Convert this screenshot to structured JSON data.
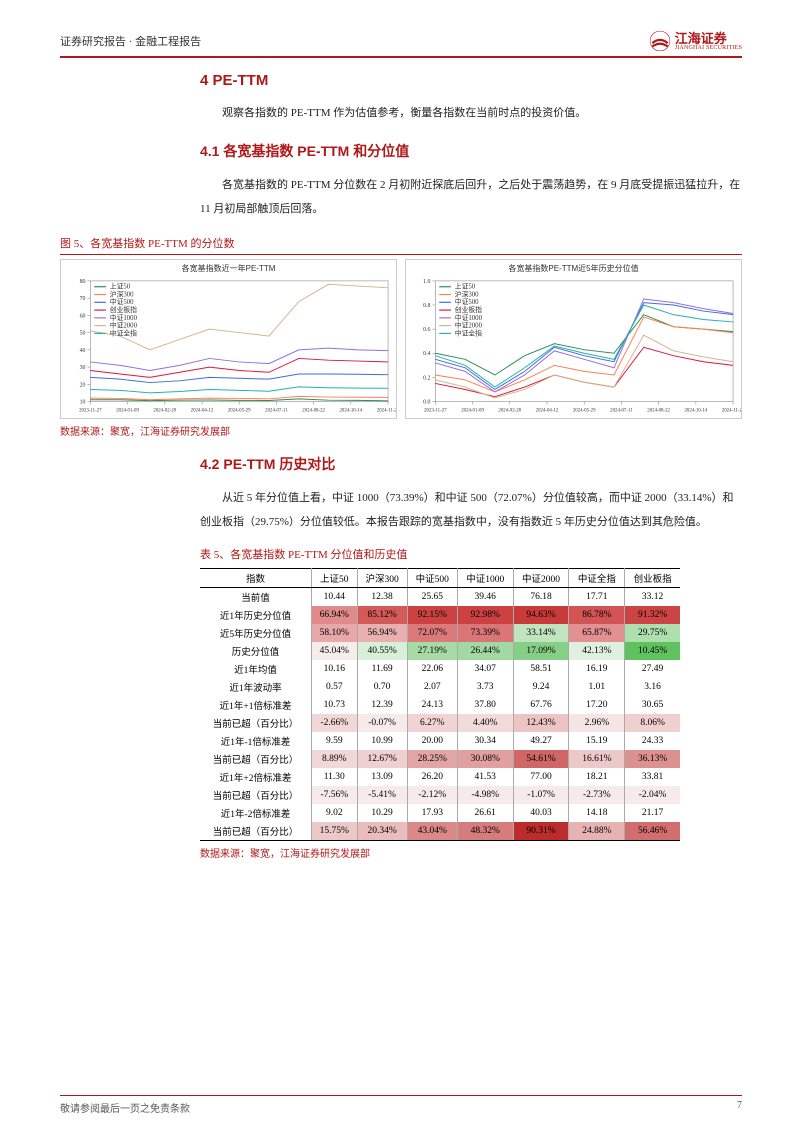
{
  "header": {
    "breadcrumb": "证券研究报告 · 金融工程报告",
    "logo_cn": "江海证券",
    "logo_en": "JIANGHAI SECURITIES"
  },
  "section4": {
    "title": "4 PE-TTM",
    "intro": "观察各指数的 PE-TTM 作为估值参考，衡量各指数在当前时点的投资价值。"
  },
  "section41": {
    "title": "4.1 各宽基指数 PE-TTM 和分位值",
    "para": "各宽基指数的 PE-TTM 分位数在 2 月初附近探底后回升，之后处于震荡趋势，在 9 月底受提振迅猛拉升，在 11 月初局部触顶后回落。"
  },
  "fig5": {
    "caption": "图 5、各宽基指数 PE-TTM 的分位数",
    "source": "数据来源：聚宽，江海证券研究发展部",
    "left_chart": {
      "title": "各宽基指数近一年PE-TTM",
      "legend": [
        "上证50",
        "沪深300",
        "中证500",
        "创业板指",
        "中证1000",
        "中证2000",
        "中证全指"
      ],
      "colors": [
        "#2e8b57",
        "#ff7f50",
        "#4169e1",
        "#dc143c",
        "#9370db",
        "#d2b48c",
        "#20b2aa"
      ],
      "x_labels": [
        "2023-11-27",
        "2024-01-09",
        "2024-02-28",
        "2024-04-12",
        "2024-05-29",
        "2024-07-11",
        "2024-08-22",
        "2024-10-14",
        "2024-11-25"
      ],
      "y_min": 10,
      "y_max": 80,
      "y_step": 10,
      "series": [
        [
          11,
          11,
          10.5,
          10.8,
          10.9,
          10.7,
          10.6,
          11.5,
          10.8,
          10.7,
          10.4
        ],
        [
          12,
          11.8,
          11,
          11.5,
          12,
          11.8,
          11.6,
          13,
          12.6,
          12.5,
          12.4
        ],
        [
          24,
          23,
          21,
          22,
          24,
          23.5,
          23,
          26,
          26,
          25.8,
          25.6
        ],
        [
          28,
          26,
          24,
          27,
          30,
          28,
          27,
          35,
          34,
          33.5,
          33
        ],
        [
          33,
          31,
          28,
          31,
          35,
          33,
          32,
          40,
          41,
          40,
          39.5
        ],
        [
          51,
          48,
          40,
          46,
          52,
          50,
          48,
          68,
          78,
          77,
          76
        ],
        [
          17,
          16.5,
          15,
          15.8,
          17,
          16.5,
          16,
          18.5,
          18,
          17.8,
          17.7
        ]
      ]
    },
    "right_chart": {
      "title": "各宽基指数PE-TTM近5年历史分位值",
      "legend": [
        "上证50",
        "沪深300",
        "中证500",
        "创业板指",
        "中证1000",
        "中证2000",
        "中证全指"
      ],
      "colors": [
        "#2e8b57",
        "#ff7f50",
        "#4169e1",
        "#dc143c",
        "#9370db",
        "#d2b48c",
        "#20b2aa"
      ],
      "x_labels": [
        "2023-11-27",
        "2024-01-09",
        "2024-02-28",
        "2024-04-12",
        "2024-05-29",
        "2024-07-11",
        "2024-08-22",
        "2024-10-14",
        "2024-11-25"
      ],
      "y_min": 0,
      "y_max": 1,
      "y_step": 0.2,
      "series": [
        [
          0.4,
          0.35,
          0.22,
          0.38,
          0.48,
          0.43,
          0.4,
          0.72,
          0.62,
          0.6,
          0.58
        ],
        [
          0.22,
          0.18,
          0.08,
          0.18,
          0.3,
          0.25,
          0.22,
          0.7,
          0.62,
          0.6,
          0.57
        ],
        [
          0.35,
          0.28,
          0.1,
          0.25,
          0.45,
          0.38,
          0.33,
          0.82,
          0.8,
          0.75,
          0.72
        ],
        [
          0.15,
          0.1,
          0.04,
          0.12,
          0.22,
          0.16,
          0.12,
          0.45,
          0.38,
          0.33,
          0.3
        ],
        [
          0.32,
          0.25,
          0.08,
          0.22,
          0.42,
          0.35,
          0.28,
          0.85,
          0.82,
          0.77,
          0.73
        ],
        [
          0.18,
          0.12,
          0.03,
          0.1,
          0.22,
          0.16,
          0.12,
          0.55,
          0.42,
          0.37,
          0.33
        ],
        [
          0.38,
          0.3,
          0.12,
          0.28,
          0.46,
          0.4,
          0.35,
          0.8,
          0.72,
          0.68,
          0.66
        ]
      ]
    }
  },
  "section42": {
    "title": "4.2 PE-TTM 历史对比",
    "para": "从近 5 年分位值上看，中证 1000（73.39%）和中证 500（72.07%）分位值较高，而中证 2000（33.14%）和创业板指（29.75%）分位值较低。本报告跟踪的宽基指数中，没有指数近 5 年历史分位值达到其危险值。"
  },
  "table5": {
    "caption": "表 5、各宽基指数 PE-TTM 分位值和历史值",
    "source": "数据来源：聚宽，江海证券研究发展部",
    "columns": [
      "指数",
      "上证50",
      "沪深300",
      "中证500",
      "中证1000",
      "中证2000",
      "中证全指",
      "创业板指"
    ],
    "rows": [
      {
        "label": "当前值",
        "cells": [
          "10.44",
          "12.38",
          "25.65",
          "39.46",
          "76.18",
          "17.71",
          "33.12"
        ],
        "bg": [
          "",
          "",
          "",
          "",
          "",
          "",
          ""
        ]
      },
      {
        "label": "近1年历史分位值",
        "cells": [
          "66.94%",
          "85.12%",
          "92.15%",
          "92.98%",
          "94.63%",
          "86.78%",
          "91.32%"
        ],
        "bg": [
          "#e08a8a",
          "#d45a5a",
          "#cc4242",
          "#cc4242",
          "#c93a3a",
          "#d25454",
          "#cd4444"
        ]
      },
      {
        "label": "近5年历史分位值",
        "cells": [
          "58.10%",
          "56.94%",
          "72.07%",
          "73.39%",
          "33.14%",
          "65.87%",
          "29.75%"
        ],
        "bg": [
          "#e8a8a8",
          "#eab0b0",
          "#dc7a7a",
          "#db7676",
          "#bfe4bf",
          "#e29090",
          "#aee0ae"
        ]
      },
      {
        "label": "历史分位值",
        "cells": [
          "45.04%",
          "40.55%",
          "27.19%",
          "26.44%",
          "17.09%",
          "42.13%",
          "10.45%"
        ],
        "bg": [
          "#f7ecec",
          "#d8efd8",
          "#a6dba6",
          "#a2d9a2",
          "#86cf86",
          "#e0f0e0",
          "#5fc25f"
        ]
      },
      {
        "label": "近1年均值",
        "cells": [
          "10.16",
          "11.69",
          "22.06",
          "34.07",
          "58.51",
          "16.19",
          "27.49"
        ],
        "bg": [
          "",
          "",
          "",
          "",
          "",
          "",
          ""
        ]
      },
      {
        "label": "近1年波动率",
        "cells": [
          "0.57",
          "0.70",
          "2.07",
          "3.73",
          "9.24",
          "1.01",
          "3.16"
        ],
        "bg": [
          "",
          "",
          "",
          "",
          "",
          "",
          ""
        ]
      },
      {
        "label": "近1年+1倍标准差",
        "cells": [
          "10.73",
          "12.39",
          "24.13",
          "37.80",
          "67.76",
          "17.20",
          "30.65"
        ],
        "bg": [
          "",
          "",
          "",
          "",
          "",
          "",
          ""
        ]
      },
      {
        "label": "当前已超（百分比）",
        "cells": [
          "-2.66%",
          "-0.07%",
          "6.27%",
          "4.40%",
          "12.43%",
          "2.96%",
          "8.06%"
        ],
        "bg": [
          "#f2d7d7",
          "#f6eaea",
          "#f1d3d3",
          "#f3dada",
          "#ecc4c4",
          "#f5e4e4",
          "#f0cfcf"
        ]
      },
      {
        "label": "近1年-1倍标准差",
        "cells": [
          "9.59",
          "10.99",
          "20.00",
          "30.34",
          "49.27",
          "15.19",
          "24.33"
        ],
        "bg": [
          "",
          "",
          "",
          "",
          "",
          "",
          ""
        ]
      },
      {
        "label": "当前已超（百分比）",
        "cells": [
          "8.89%",
          "12.67%",
          "28.25%",
          "30.08%",
          "54.61%",
          "16.61%",
          "36.13%"
        ],
        "bg": [
          "#f2d7d7",
          "#efcfcf",
          "#e2a4a4",
          "#e1a0a0",
          "#d06666",
          "#edc8c8",
          "#dd9090"
        ]
      },
      {
        "label": "近1年+2倍标准差",
        "cells": [
          "11.30",
          "13.09",
          "26.20",
          "41.53",
          "77.00",
          "18.21",
          "33.81"
        ],
        "bg": [
          "",
          "",
          "",
          "",
          "",
          "",
          ""
        ]
      },
      {
        "label": "当前已超（百分比）",
        "cells": [
          "-7.56%",
          "-5.41%",
          "-2.12%",
          "-4.98%",
          "-1.07%",
          "-2.73%",
          "-2.04%"
        ],
        "bg": [
          "#f6eaea",
          "#f6eaea",
          "#f6eaea",
          "#f6eaea",
          "#f6eaea",
          "#f6eaea",
          "#f6eaea"
        ]
      },
      {
        "label": "近1年-2倍标准差",
        "cells": [
          "9.02",
          "10.29",
          "17.93",
          "26.61",
          "40.03",
          "14.18",
          "21.17"
        ],
        "bg": [
          "",
          "",
          "",
          "",
          "",
          "",
          ""
        ]
      },
      {
        "label": "当前已超（百分比）",
        "cells": [
          "15.75%",
          "20.34%",
          "43.04%",
          "48.32%",
          "90.31%",
          "24.88%",
          "56.46%"
        ],
        "bg": [
          "#edc8c8",
          "#eabcbc",
          "#da8888",
          "#d67c7c",
          "#bd2c2c",
          "#e7b2b2",
          "#d26e6e"
        ]
      }
    ]
  },
  "footer": {
    "disclaimer": "敬请参阅最后一页之免责条款",
    "page_number": "7"
  }
}
